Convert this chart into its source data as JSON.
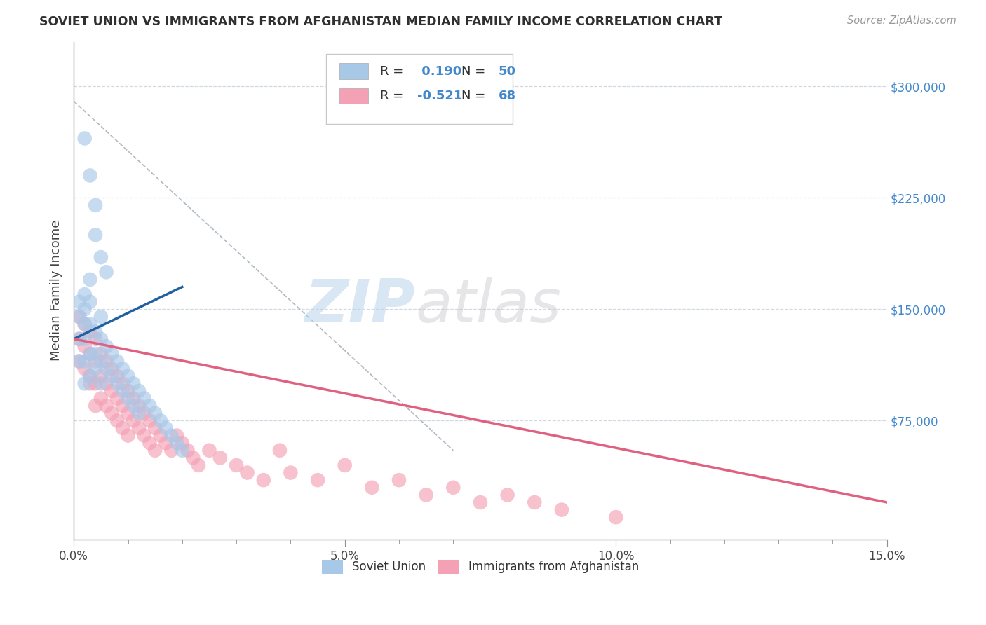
{
  "title": "SOVIET UNION VS IMMIGRANTS FROM AFGHANISTAN MEDIAN FAMILY INCOME CORRELATION CHART",
  "source": "Source: ZipAtlas.com",
  "ylabel": "Median Family Income",
  "xlim": [
    0.0,
    0.15
  ],
  "ylim": [
    -5000,
    330000
  ],
  "yticks": [
    0,
    75000,
    150000,
    225000,
    300000
  ],
  "ytick_labels": [
    "",
    "$75,000",
    "$150,000",
    "$225,000",
    "$300,000"
  ],
  "xticks": [
    0.0,
    0.05,
    0.1,
    0.15
  ],
  "xtick_labels": [
    "0.0%",
    "5.0%",
    "10.0%",
    "15.0%"
  ],
  "blue_R": 0.19,
  "blue_N": 50,
  "pink_R": -0.521,
  "pink_N": 68,
  "blue_color": "#a8c8e8",
  "pink_color": "#f4a0b5",
  "blue_line_color": "#2060a0",
  "pink_line_color": "#e06080",
  "ref_line_color": "#b0b8c0",
  "background_color": "#ffffff",
  "grid_color": "#d0d8e0",
  "watermark_zip_color": "#b8d4ea",
  "watermark_atlas_color": "#c8c8cc",
  "title_color": "#303030",
  "axis_color": "#909090",
  "legend_blue_label": "Soviet Union",
  "legend_pink_label": "Immigrants from Afghanistan",
  "blue_x": [
    0.001,
    0.001,
    0.001,
    0.001,
    0.002,
    0.002,
    0.002,
    0.002,
    0.002,
    0.002,
    0.003,
    0.003,
    0.003,
    0.003,
    0.003,
    0.004,
    0.004,
    0.004,
    0.005,
    0.005,
    0.005,
    0.005,
    0.006,
    0.006,
    0.007,
    0.007,
    0.008,
    0.008,
    0.009,
    0.009,
    0.01,
    0.01,
    0.011,
    0.011,
    0.012,
    0.012,
    0.013,
    0.014,
    0.015,
    0.016,
    0.017,
    0.018,
    0.019,
    0.02,
    0.002,
    0.003,
    0.004,
    0.004,
    0.005,
    0.006
  ],
  "blue_y": [
    155000,
    145000,
    130000,
    115000,
    160000,
    150000,
    140000,
    130000,
    115000,
    100000,
    170000,
    155000,
    140000,
    120000,
    105000,
    135000,
    120000,
    110000,
    145000,
    130000,
    115000,
    100000,
    125000,
    110000,
    120000,
    105000,
    115000,
    100000,
    110000,
    95000,
    105000,
    90000,
    100000,
    85000,
    95000,
    80000,
    90000,
    85000,
    80000,
    75000,
    70000,
    65000,
    60000,
    55000,
    265000,
    240000,
    220000,
    200000,
    185000,
    175000
  ],
  "pink_x": [
    0.001,
    0.001,
    0.001,
    0.002,
    0.002,
    0.002,
    0.003,
    0.003,
    0.003,
    0.003,
    0.004,
    0.004,
    0.004,
    0.004,
    0.005,
    0.005,
    0.005,
    0.006,
    0.006,
    0.006,
    0.007,
    0.007,
    0.007,
    0.008,
    0.008,
    0.008,
    0.009,
    0.009,
    0.009,
    0.01,
    0.01,
    0.01,
    0.011,
    0.011,
    0.012,
    0.012,
    0.013,
    0.013,
    0.014,
    0.014,
    0.015,
    0.015,
    0.016,
    0.017,
    0.018,
    0.019,
    0.02,
    0.021,
    0.022,
    0.023,
    0.025,
    0.027,
    0.03,
    0.032,
    0.035,
    0.038,
    0.04,
    0.045,
    0.05,
    0.055,
    0.06,
    0.065,
    0.07,
    0.075,
    0.08,
    0.085,
    0.09,
    0.1
  ],
  "pink_y": [
    145000,
    130000,
    115000,
    140000,
    125000,
    110000,
    135000,
    120000,
    105000,
    100000,
    130000,
    115000,
    100000,
    85000,
    120000,
    105000,
    90000,
    115000,
    100000,
    85000,
    110000,
    95000,
    80000,
    105000,
    90000,
    75000,
    100000,
    85000,
    70000,
    95000,
    80000,
    65000,
    90000,
    75000,
    85000,
    70000,
    80000,
    65000,
    75000,
    60000,
    70000,
    55000,
    65000,
    60000,
    55000,
    65000,
    60000,
    55000,
    50000,
    45000,
    55000,
    50000,
    45000,
    40000,
    35000,
    55000,
    40000,
    35000,
    45000,
    30000,
    35000,
    25000,
    30000,
    20000,
    25000,
    20000,
    15000,
    10000
  ],
  "ref_line_x1": 0.0,
  "ref_line_y1": 290000,
  "ref_line_x2": 0.07,
  "ref_line_y2": 55000,
  "blue_trend_x1": 0.0,
  "blue_trend_y1": 130000,
  "blue_trend_x2": 0.02,
  "blue_trend_y2": 165000,
  "pink_trend_x1": 0.0,
  "pink_trend_x2": 0.15,
  "pink_trend_y1": 130000,
  "pink_trend_y2": 20000
}
